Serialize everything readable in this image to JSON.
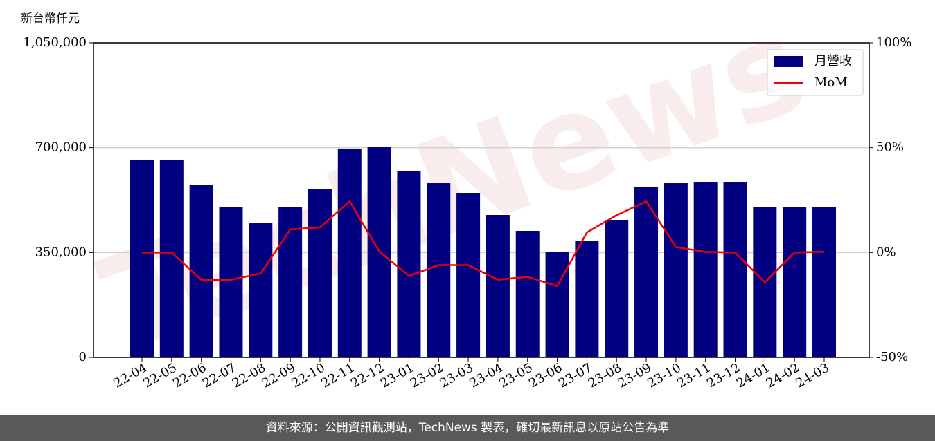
{
  "chart_data": {
    "type": "bar_line",
    "ylabel": "新台幣仟元",
    "watermark": "TechNews",
    "categories": [
      "22-04",
      "22-05",
      "22-06",
      "22-07",
      "22-08",
      "22-09",
      "22-10",
      "22-11",
      "22-12",
      "23-01",
      "23-02",
      "23-03",
      "23-04",
      "23-05",
      "23-06",
      "23-07",
      "23-08",
      "23-09",
      "23-10",
      "23-11",
      "23-12",
      "24-01",
      "24-02",
      "24-03"
    ],
    "series": [
      {
        "name": "月營收",
        "type": "bar",
        "color": "#000080",
        "values": [
          660000,
          660000,
          574600,
          500800,
          450000,
          500800,
          560800,
          697000,
          701500,
          620800,
          581500,
          549200,
          475400,
          422300,
          353100,
          387700,
          457000,
          567700,
          581500,
          583800,
          583800,
          500800,
          500800,
          503000
        ]
      },
      {
        "name": "MoM",
        "type": "line",
        "axis": "y2",
        "color": "#ee0000",
        "values": [
          0,
          0,
          -13,
          -13,
          -10,
          11,
          12,
          24.4,
          0.6,
          -11.2,
          -6,
          -6,
          -13,
          -11.6,
          -16,
          9.6,
          17.8,
          24.4,
          2.6,
          0.3,
          0,
          -14.2,
          0,
          0.4
        ]
      }
    ],
    "ylim": [
      0,
      1050000
    ],
    "yticks": [
      0,
      {
        "value": 350000,
        "label": "350,000"
      },
      {
        "value": 700000,
        "label": "700,000"
      },
      {
        "value": 1050000,
        "label": "1,050,000"
      }
    ],
    "y2lim": [
      -50,
      100
    ],
    "y2ticks": [
      {
        "value": -50,
        "label": "-50%"
      },
      {
        "value": 0,
        "label": "0%"
      },
      {
        "value": 50,
        "label": "50%"
      },
      {
        "value": 100,
        "label": "100%"
      }
    ],
    "grid": true,
    "legend": "upper right"
  },
  "footer": "資料來源：公開資訊觀測站，TechNews 製表，確切最新訊息以原站公告為準"
}
